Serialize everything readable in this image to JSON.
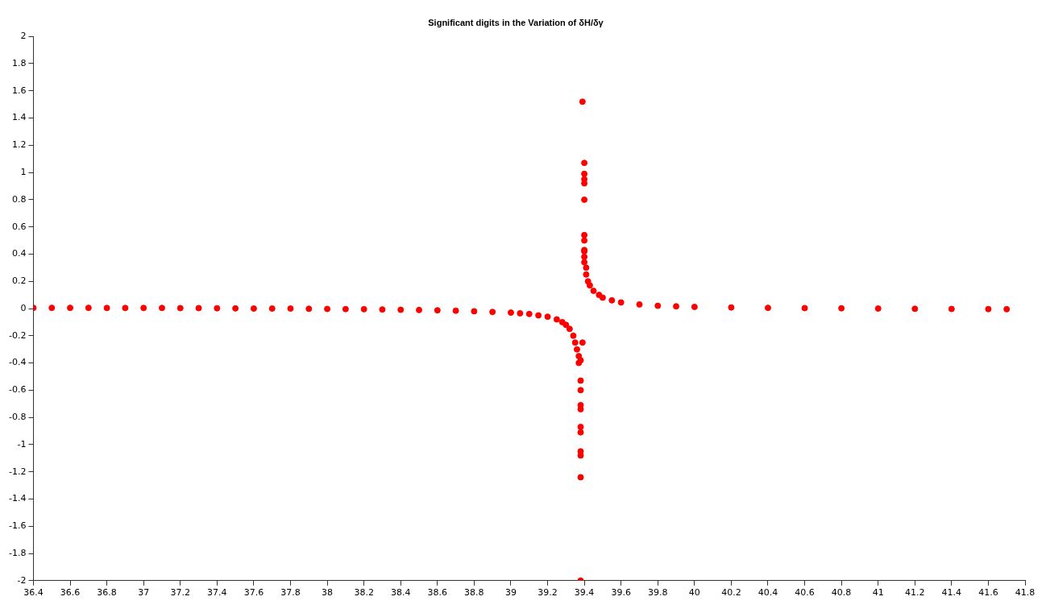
{
  "chart_data": {
    "type": "scatter",
    "title": "Significant digits in the Variation of δH/δγ",
    "x": [
      36.4,
      36.5,
      36.6,
      36.7,
      36.8,
      36.9,
      37.0,
      37.1,
      37.2,
      37.3,
      37.4,
      37.5,
      37.6,
      37.7,
      37.8,
      37.9,
      38.0,
      38.1,
      38.2,
      38.3,
      38.4,
      38.5,
      38.6,
      38.7,
      38.8,
      38.9,
      39.0,
      39.05,
      39.1,
      39.15,
      39.2,
      39.25,
      39.28,
      39.3,
      39.32,
      39.34,
      39.35,
      39.36,
      39.37,
      39.37,
      39.38,
      39.38,
      39.38,
      39.38,
      39.38,
      39.38,
      39.38,
      39.38,
      39.38,
      39.38,
      39.38,
      39.39,
      39.39,
      39.4,
      39.4,
      39.4,
      39.4,
      39.4,
      39.4,
      39.4,
      39.4,
      39.4,
      39.4,
      39.4,
      39.41,
      39.41,
      39.42,
      39.43,
      39.45,
      39.48,
      39.5,
      39.55,
      39.6,
      39.7,
      39.8,
      39.9,
      40.0,
      40.2,
      40.4,
      40.6,
      40.8,
      41.0,
      41.2,
      41.4,
      41.6,
      41.7
    ],
    "values": [
      0.005,
      0.005,
      0.005,
      0.005,
      0.004,
      0.004,
      0.004,
      0.004,
      0.003,
      0.003,
      0.002,
      0.001,
      0.0,
      0.0,
      0.0,
      -0.002,
      -0.003,
      -0.004,
      -0.005,
      -0.007,
      -0.009,
      -0.011,
      -0.013,
      -0.016,
      -0.02,
      -0.025,
      -0.03,
      -0.035,
      -0.04,
      -0.05,
      -0.06,
      -0.08,
      -0.1,
      -0.12,
      -0.15,
      -0.2,
      -0.25,
      -0.3,
      -0.35,
      -0.4,
      -0.53,
      -0.6,
      -0.71,
      -0.74,
      -0.87,
      -0.91,
      -1.05,
      -1.08,
      -1.24,
      -2.0,
      -0.38,
      -0.25,
      1.52,
      1.07,
      0.99,
      0.95,
      0.92,
      0.8,
      0.54,
      0.5,
      0.42,
      0.38,
      0.43,
      0.34,
      0.3,
      0.25,
      0.2,
      0.17,
      0.13,
      0.1,
      0.08,
      0.06,
      0.045,
      0.03,
      0.02,
      0.016,
      0.012,
      0.008,
      0.005,
      0.003,
      0.002,
      0.0,
      -0.002,
      -0.003,
      -0.004,
      -0.005
    ],
    "color": "#ff0000",
    "marker": "circle",
    "xlim": [
      36.4,
      41.8
    ],
    "xticks": [
      36.4,
      36.6,
      36.8,
      37,
      37.2,
      37.4,
      37.6,
      37.8,
      38,
      38.2,
      38.4,
      38.6,
      38.8,
      39,
      39.2,
      39.4,
      39.6,
      39.8,
      40,
      40.2,
      40.4,
      40.6,
      40.8,
      41,
      41.2,
      41.4,
      41.6,
      41.8
    ],
    "ylim": [
      -2,
      2
    ],
    "yticks": [
      -2,
      -1.8,
      -1.6,
      -1.4,
      -1.2,
      -1,
      -0.8,
      -0.6,
      -0.4,
      -0.2,
      0,
      0.2,
      0.4,
      0.6,
      0.8,
      1,
      1.2,
      1.4,
      1.6,
      1.8,
      2
    ],
    "grid": false,
    "legend": false
  }
}
